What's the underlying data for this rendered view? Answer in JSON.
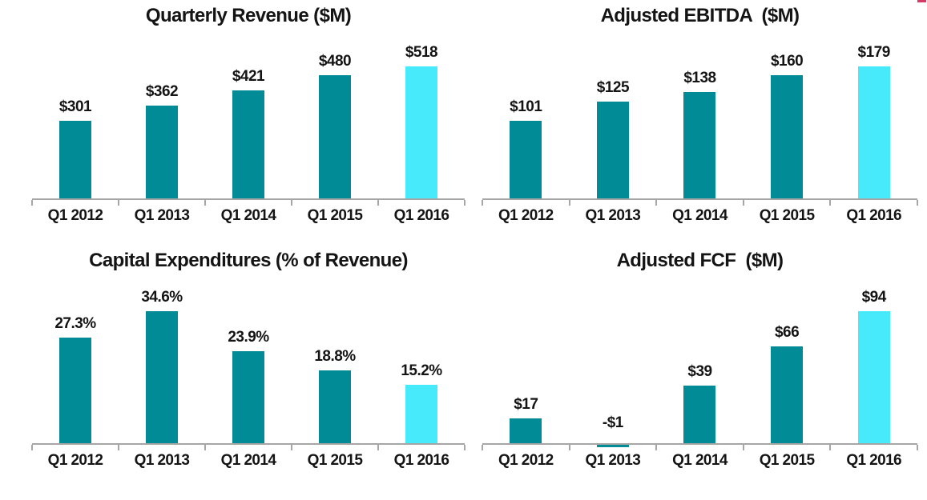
{
  "page": {
    "background": "#ffffff"
  },
  "decoration": {
    "corner_fragment_name": "cropped-logo-fragment",
    "corner_fragment_color": "#d63a64"
  },
  "colors": {
    "bar": "#008b96",
    "highlight_bar": "#47eafb",
    "axis": "#a6a6a6",
    "text": "#141414"
  },
  "chart_data": [
    {
      "type": "bar",
      "title": "Quarterly Revenue ($M)",
      "categories": [
        "Q1 2012",
        "Q1 2013",
        "Q1 2014",
        "Q1 2015",
        "Q1 2016"
      ],
      "values": [
        301,
        362,
        421,
        480,
        518
      ],
      "labels": [
        "$301",
        "$362",
        "$421",
        "$480",
        "$518"
      ],
      "xlabel": "",
      "ylabel": "",
      "ylim": [
        0,
        600
      ],
      "grid": false,
      "legend": "none",
      "highlight_last": true
    },
    {
      "type": "bar",
      "title": "Adjusted EBITDA  ($M)",
      "categories": [
        "Q1 2012",
        "Q1 2013",
        "Q1 2014",
        "Q1 2015",
        "Q1 2016"
      ],
      "values": [
        101,
        125,
        138,
        160,
        179
      ],
      "labels": [
        "$101",
        "$125",
        "$138",
        "$160",
        "$179"
      ],
      "xlabel": "",
      "ylabel": "",
      "ylim": [
        0,
        200
      ],
      "grid": false,
      "legend": "none",
      "highlight_last": true
    },
    {
      "type": "bar",
      "title": "Capital Expenditures (% of Revenue)",
      "categories": [
        "Q1 2012",
        "Q1 2013",
        "Q1 2014",
        "Q1 2015",
        "Q1 2016"
      ],
      "values": [
        27.3,
        34.6,
        23.9,
        18.8,
        15.2
      ],
      "labels": [
        "27.3%",
        "34.6%",
        "23.9%",
        "18.8%",
        "15.2%"
      ],
      "xlabel": "",
      "ylabel": "",
      "ylim": [
        0,
        40
      ],
      "grid": false,
      "legend": "none",
      "highlight_last": true
    },
    {
      "type": "bar",
      "title": "Adjusted FCF  ($M)",
      "categories": [
        "Q1 2012",
        "Q1 2013",
        "Q1 2014",
        "Q1 2015",
        "Q1 2016"
      ],
      "values": [
        17,
        -1,
        39,
        66,
        94
      ],
      "labels": [
        "$17",
        "-$1",
        "$39",
        "$66",
        "$94"
      ],
      "xlabel": "",
      "ylabel": "",
      "ylim": [
        0,
        105
      ],
      "grid": false,
      "legend": "none",
      "highlight_last": true
    }
  ]
}
